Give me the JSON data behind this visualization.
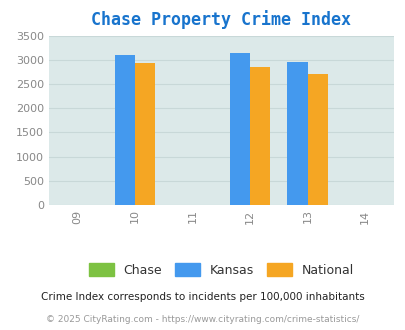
{
  "title": "Chase Property Crime Index",
  "title_color": "#1874CD",
  "years": [
    2009,
    2010,
    2011,
    2012,
    2013,
    2014
  ],
  "bar_years": [
    2010,
    2012,
    2013
  ],
  "chase_values": [
    0,
    0,
    0
  ],
  "kansas_values": [
    3120,
    3150,
    2960
  ],
  "national_values": [
    2950,
    2870,
    2720
  ],
  "chase_color": "#7dc242",
  "kansas_color": "#4499ee",
  "national_color": "#f5a623",
  "ylim": [
    0,
    3500
  ],
  "yticks": [
    0,
    500,
    1000,
    1500,
    2000,
    2500,
    3000,
    3500
  ],
  "background_color": "#dce9e9",
  "grid_color": "#c8d8d8",
  "bar_width": 0.35,
  "legend_labels": [
    "Chase",
    "Kansas",
    "National"
  ],
  "footnote1": "Crime Index corresponds to incidents per 100,000 inhabitants",
  "footnote2": "© 2025 CityRating.com - https://www.cityrating.com/crime-statistics/",
  "footnote1_color": "#222222",
  "footnote2_color": "#999999"
}
